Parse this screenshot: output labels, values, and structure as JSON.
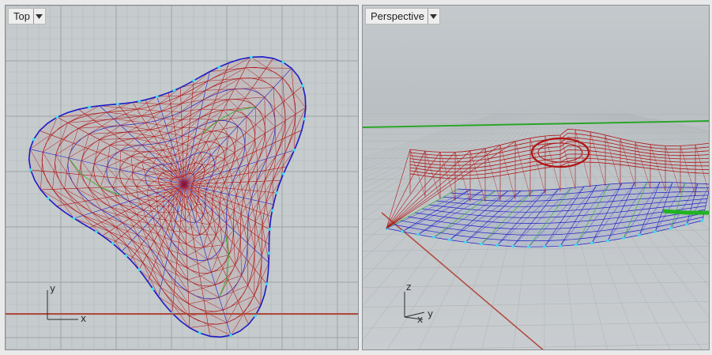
{
  "viewports": {
    "top": {
      "title": "Top",
      "axis_labels": {
        "x": "x",
        "y": "y"
      }
    },
    "perspective": {
      "title": "Perspective",
      "axis_labels": {
        "x": "x",
        "y": "y",
        "z": "z"
      }
    }
  },
  "icons": {
    "viewport_menu": "dropdown-arrow-icon"
  },
  "colors": {
    "viewport_bg": "#c6cbce",
    "grid_minor": "#b2b7ba",
    "grid_major": "#9ea3a7",
    "mesh_red": "#b01414",
    "mesh_blue": "#1c1cc8",
    "mesh_green": "#21b421",
    "control_points": "#3fe0ee",
    "x_axis_line": "#b0483a",
    "y_axis_line": "#2aa52a"
  }
}
